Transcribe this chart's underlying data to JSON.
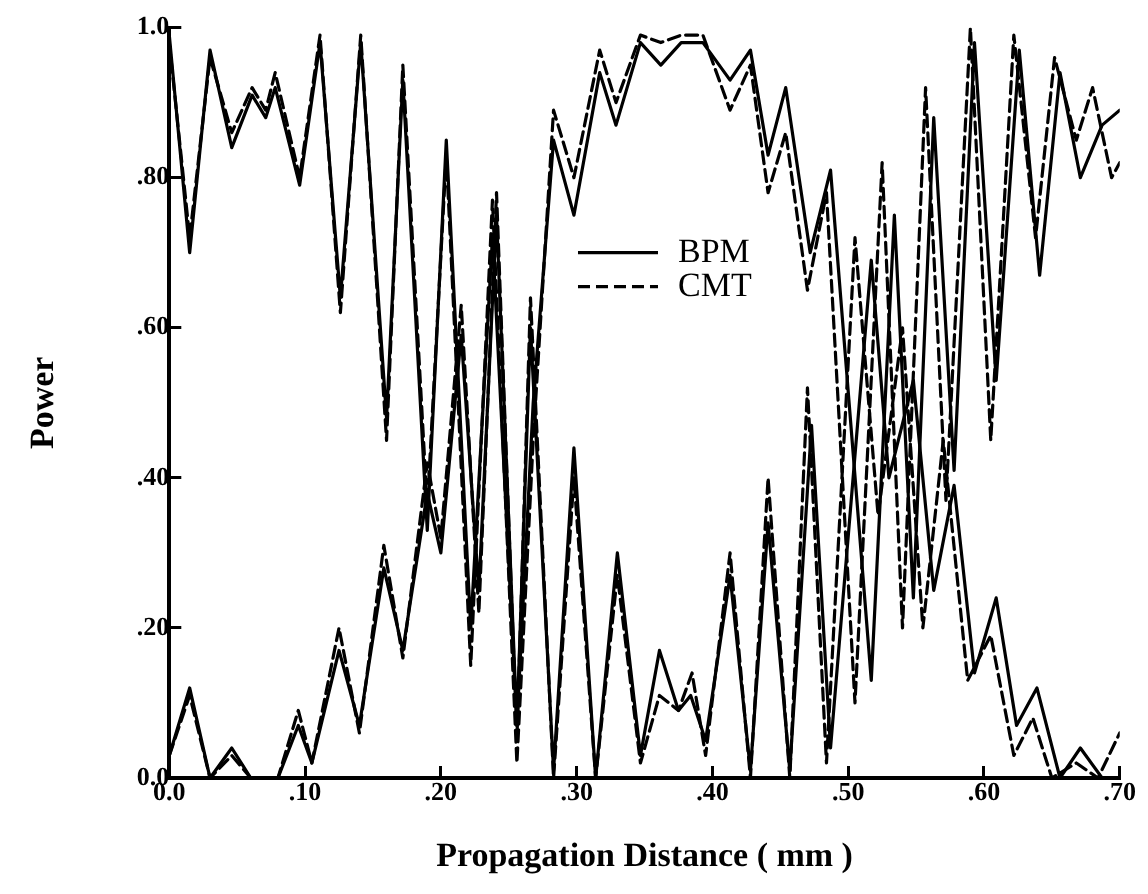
{
  "chart_data": {
    "type": "line",
    "xlabel": "Propagation Distance ( mm )",
    "ylabel": "Power",
    "xlim": [
      0,
      0.7
    ],
    "ylim": [
      0,
      1
    ],
    "xticks": [
      {
        "value": 0,
        "label": "0.0"
      },
      {
        "value": 0.1,
        "label": ".10"
      },
      {
        "value": 0.2,
        "label": ".20"
      },
      {
        "value": 0.3,
        "label": ".30"
      },
      {
        "value": 0.4,
        "label": ".40"
      },
      {
        "value": 0.5,
        "label": ".50"
      },
      {
        "value": 0.6,
        "label": ".60"
      },
      {
        "value": 0.7,
        "label": ".70"
      }
    ],
    "yticks": [
      {
        "value": 0,
        "label": "0.0"
      },
      {
        "value": 0.2,
        "label": ".20"
      },
      {
        "value": 0.4,
        "label": ".40"
      },
      {
        "value": 0.6,
        "label": ".60"
      },
      {
        "value": 0.8,
        "label": ".80"
      },
      {
        "value": 1,
        "label": "1.0"
      }
    ],
    "grid": false,
    "legend": "center",
    "marker": "none",
    "series": [
      {
        "name": "BPM",
        "color": "#000000",
        "line_style": "solid",
        "x": [
          0,
          0.015,
          0.03,
          0.046,
          0.061,
          0.071,
          0.078,
          0.096,
          0.111,
          0.126,
          0.141,
          0.16,
          0.172,
          0.19,
          0.204,
          0.222,
          0.238,
          0.256,
          0.268,
          0.283,
          0.298,
          0.317,
          0.329,
          0.347,
          0.362,
          0.377,
          0.393,
          0.413,
          0.428,
          0.441,
          0.454,
          0.472,
          0.487,
          0.517,
          0.534,
          0.548,
          0.563,
          0.578,
          0.593,
          0.609,
          0.626,
          0.641,
          0.656,
          0.671,
          0.687,
          0.7
        ],
        "values": [
          0.99,
          0.7,
          0.97,
          0.84,
          0.91,
          0.88,
          0.92,
          0.79,
          0.98,
          0.64,
          0.98,
          0.48,
          0.93,
          0.33,
          0.85,
          0.2,
          0.72,
          0.07,
          0.5,
          0.85,
          0.75,
          0.94,
          0.87,
          0.98,
          0.95,
          0.98,
          0.98,
          0.93,
          0.97,
          0.83,
          0.92,
          0.7,
          0.81,
          0.13,
          0.75,
          0.24,
          0.88,
          0.41,
          0.98,
          0.53,
          0.97,
          0.67,
          0.94,
          0.8,
          0.87,
          0.89
        ]
      },
      {
        "color": "#000000",
        "line_style": "solid",
        "x": [
          0,
          0.015,
          0.03,
          0.046,
          0.06,
          0.08,
          0.095,
          0.105,
          0.125,
          0.14,
          0.158,
          0.172,
          0.19,
          0.2,
          0.215,
          0.228,
          0.241,
          0.256,
          0.266,
          0.283,
          0.298,
          0.314,
          0.33,
          0.347,
          0.361,
          0.375,
          0.384,
          0.395,
          0.413,
          0.428,
          0.441,
          0.457,
          0.473,
          0.487,
          0.517,
          0.53,
          0.548,
          0.563,
          0.578,
          0.593,
          0.609,
          0.624,
          0.639,
          0.656,
          0.671,
          0.687,
          0.7
        ],
        "values": [
          0.03,
          0.12,
          0,
          0.04,
          0,
          0,
          0.07,
          0.02,
          0.17,
          0.07,
          0.28,
          0.17,
          0.38,
          0.3,
          0.59,
          0.25,
          0.75,
          0.07,
          0.6,
          0.01,
          0.44,
          0,
          0.3,
          0.03,
          0.17,
          0.09,
          0.11,
          0.05,
          0.27,
          0.01,
          0.34,
          0.01,
          0.47,
          0.04,
          0.69,
          0.4,
          0.53,
          0.25,
          0.39,
          0.14,
          0.24,
          0.07,
          0.12,
          0,
          0.04,
          0,
          0
        ]
      },
      {
        "name": "CMT",
        "color": "#000000",
        "line_style": "dashed",
        "x": [
          0,
          0.015,
          0.03,
          0.046,
          0.061,
          0.071,
          0.078,
          0.096,
          0.111,
          0.126,
          0.141,
          0.16,
          0.172,
          0.19,
          0.204,
          0.222,
          0.238,
          0.256,
          0.268,
          0.283,
          0.298,
          0.317,
          0.329,
          0.347,
          0.362,
          0.377,
          0.393,
          0.413,
          0.428,
          0.441,
          0.454,
          0.47,
          0.484,
          0.505,
          0.525,
          0.54,
          0.557,
          0.572,
          0.59,
          0.605,
          0.622,
          0.638,
          0.652,
          0.668,
          0.68,
          0.694,
          0.7
        ],
        "values": [
          0.98,
          0.72,
          0.96,
          0.86,
          0.92,
          0.89,
          0.94,
          0.8,
          0.99,
          0.62,
          0.99,
          0.45,
          0.95,
          0.36,
          0.83,
          0.15,
          0.77,
          0.02,
          0.45,
          0.89,
          0.8,
          0.97,
          0.9,
          0.99,
          0.98,
          0.99,
          0.99,
          0.89,
          0.95,
          0.78,
          0.86,
          0.65,
          0.78,
          0.1,
          0.82,
          0.2,
          0.92,
          0.37,
          1.0,
          0.45,
          0.99,
          0.72,
          0.96,
          0.85,
          0.92,
          0.8,
          0.82
        ]
      },
      {
        "color": "#000000",
        "line_style": "dashed",
        "x": [
          0,
          0.015,
          0.03,
          0.046,
          0.06,
          0.08,
          0.095,
          0.105,
          0.125,
          0.14,
          0.158,
          0.172,
          0.19,
          0.2,
          0.215,
          0.228,
          0.241,
          0.256,
          0.266,
          0.283,
          0.298,
          0.314,
          0.33,
          0.347,
          0.361,
          0.375,
          0.385,
          0.395,
          0.413,
          0.428,
          0.441,
          0.457,
          0.47,
          0.484,
          0.505,
          0.522,
          0.54,
          0.555,
          0.57,
          0.588,
          0.605,
          0.622,
          0.636,
          0.65,
          0.668,
          0.684,
          0.7
        ],
        "values": [
          0.03,
          0.11,
          0,
          0.03,
          0,
          0,
          0.09,
          0.02,
          0.2,
          0.06,
          0.31,
          0.16,
          0.42,
          0.32,
          0.63,
          0.22,
          0.78,
          0.05,
          0.64,
          0,
          0.4,
          0,
          0.27,
          0.02,
          0.11,
          0.09,
          0.14,
          0.03,
          0.3,
          0,
          0.4,
          0,
          0.52,
          0.02,
          0.72,
          0.35,
          0.6,
          0.2,
          0.45,
          0.13,
          0.19,
          0.03,
          0.08,
          0,
          0.02,
          0,
          0.06
        ]
      }
    ]
  }
}
